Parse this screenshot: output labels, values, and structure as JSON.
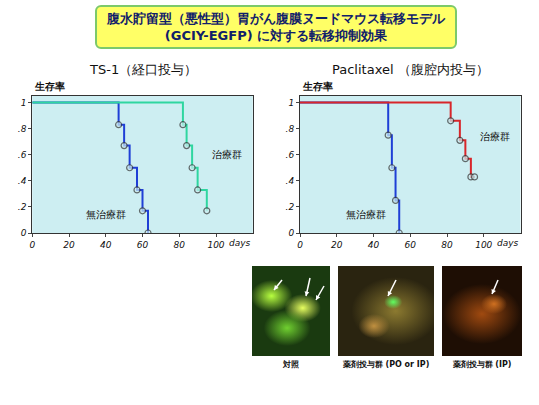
{
  "title": [
    "腹水貯留型（悪性型）胃がん腹膜ヌードマウス転移モデル",
    "(GCIY-EGFP) に対する転移抑制効果"
  ],
  "chart_data": [
    {
      "type": "line",
      "title": "TS-1（経口投与）",
      "ylabel": "生存率",
      "xlabel": "days",
      "xlim": [
        0,
        120
      ],
      "xticks": [
        0,
        20,
        40,
        60,
        80,
        100
      ],
      "ylim": [
        0,
        1.05
      ],
      "yticks": [
        0,
        {
          "value": 0.2,
          "label": ".2"
        },
        {
          "value": 0.4,
          "label": ".4"
        },
        {
          "value": 0.6,
          "label": ".6"
        },
        {
          "value": 0.8,
          "label": ".8"
        },
        1
      ],
      "grid": false,
      "line_style": "step",
      "marker": "circle",
      "series": [
        {
          "name": "無治療群",
          "color": "#1f3fd6",
          "x": [
            0,
            47,
            50,
            53,
            57,
            60,
            63
          ],
          "values": [
            1,
            0.83,
            0.67,
            0.5,
            0.33,
            0.17,
            0
          ]
        },
        {
          "name": "治療群",
          "color": "#2fd6a0",
          "x": [
            0,
            82,
            84,
            87,
            90,
            95
          ],
          "values": [
            1,
            0.83,
            0.67,
            0.5,
            0.33,
            0.17
          ]
        }
      ]
    },
    {
      "type": "line",
      "title": "Paclitaxel （腹腔内投与）",
      "ylabel": "生存率",
      "xlabel": "days",
      "xlim": [
        0,
        120
      ],
      "xticks": [
        0,
        20,
        40,
        60,
        80,
        100
      ],
      "ylim": [
        0,
        1.05
      ],
      "yticks": [
        0,
        {
          "value": 0.2,
          "label": ".2"
        },
        {
          "value": 0.4,
          "label": ".4"
        },
        {
          "value": 0.6,
          "label": ".6"
        },
        {
          "value": 0.8,
          "label": ".8"
        },
        1
      ],
      "grid": false,
      "line_style": "step",
      "marker": "circle",
      "series": [
        {
          "name": "無治療群",
          "color": "#1f3fd6",
          "x": [
            0,
            48,
            50,
            52,
            54
          ],
          "values": [
            1,
            0.75,
            0.5,
            0.25,
            0
          ]
        },
        {
          "name": "治療群",
          "color": "#d8262a",
          "x": [
            0,
            82,
            87,
            90,
            93,
            95
          ],
          "values": [
            1,
            0.86,
            0.71,
            0.57,
            0.43,
            0.43
          ]
        }
      ]
    }
  ],
  "photos": [
    {
      "caption": "対照"
    },
    {
      "caption": "薬剤投与群 (PO or IP)"
    },
    {
      "caption": "薬剤投与群 (IP)"
    }
  ]
}
